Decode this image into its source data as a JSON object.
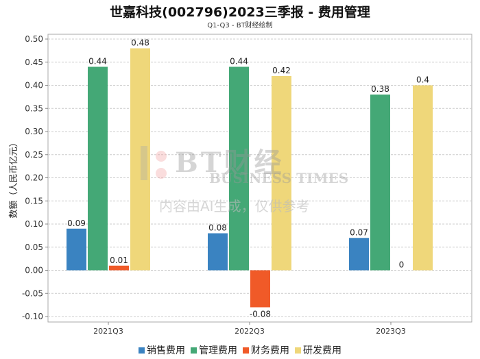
{
  "chart_data": {
    "type": "bar",
    "title": "世嘉科技(002796)2023三季报 - 费用管理",
    "subtitle": "Q1-Q3 - BT财经绘制",
    "xlabel": "",
    "ylabel": "数额（人民币亿元）",
    "ylim": [
      -0.1,
      0.5
    ],
    "yticks": [
      0.5,
      0.45,
      0.4,
      0.35,
      0.3,
      0.25,
      0.2,
      0.15,
      0.1,
      0.05,
      0.0,
      -0.05,
      -0.1
    ],
    "grid": true,
    "legend_position": "bottom",
    "categories": [
      "2021Q3",
      "2022Q3",
      "2023Q3"
    ],
    "series": [
      {
        "name": "销售费用",
        "color": "#3a83c1",
        "values": [
          0.09,
          0.08,
          0.07
        ]
      },
      {
        "name": "管理费用",
        "color": "#44a876",
        "values": [
          0.44,
          0.44,
          0.38
        ]
      },
      {
        "name": "财务费用",
        "color": "#f05a28",
        "values": [
          0.01,
          -0.08,
          0
        ]
      },
      {
        "name": "研发费用",
        "color": "#efd77a",
        "values": [
          0.48,
          0.42,
          0.4
        ]
      }
    ]
  },
  "watermark": {
    "line1": "BT财经",
    "line2": "BUSINESS TIMES",
    "line3": "内容由AI生成，仅供参考"
  }
}
